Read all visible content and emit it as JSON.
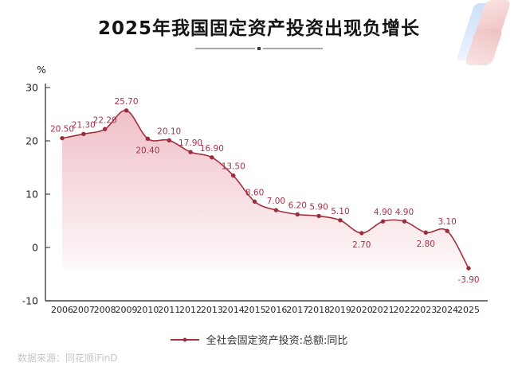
{
  "page": {
    "title": "2025年我国固定资产投资出现负增长",
    "source_note": "数据来源：同花顺iFinD"
  },
  "legend": {
    "label": "全社会固定资产投资:总额:同比"
  },
  "colors": {
    "line": "#a2303e",
    "marker": "#9c2e3a",
    "data_label": "#a43449",
    "area_top": "#efc0c8",
    "area_bottom": "#fefbfb",
    "axis_line": "#454545",
    "axis_text": "#262626",
    "source_text": "#c5c6cc"
  },
  "chart_data": {
    "type": "area",
    "title": "2025年我国固定资产投资出现负增长",
    "unit": "%",
    "categories": [
      2006,
      2007,
      2008,
      2009,
      2010,
      2011,
      2012,
      2013,
      2014,
      2015,
      2016,
      2017,
      2018,
      2019,
      2020,
      2021,
      2022,
      2023,
      2024,
      2025
    ],
    "series": [
      {
        "name": "全社会固定资产投资:总额:同比",
        "values": [
          20.5,
          21.3,
          22.2,
          25.7,
          20.4,
          20.1,
          17.9,
          16.9,
          13.5,
          8.6,
          7.0,
          6.2,
          5.9,
          5.1,
          2.7,
          4.9,
          4.9,
          2.8,
          3.1,
          -3.9
        ],
        "labels": [
          "20.50",
          "21.30",
          "22.20",
          "25.70",
          "20.40",
          "20.10",
          "17.90",
          "16.90",
          "13.50",
          "8.60",
          "7.00",
          "6.20",
          "5.90",
          "5.10",
          "2.70",
          "4.90",
          "4.90",
          "2.80",
          "3.10",
          "-3.90"
        ]
      }
    ],
    "label_below_categories": [
      2010,
      2020,
      2023,
      2025
    ],
    "ylim": [
      -10,
      30
    ],
    "yticks": [
      30,
      20,
      10,
      0,
      -10
    ],
    "ylabel": "%",
    "xlabel": "",
    "grid": false,
    "smooth": true,
    "legend_position": "bottom"
  }
}
